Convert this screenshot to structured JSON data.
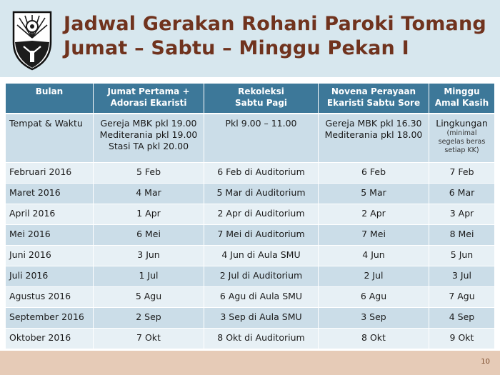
{
  "title": {
    "line1": "Jadwal Gerakan Rohani Paroki Tomang",
    "line2": "Jumat – Sabtu – Minggu Pekan I"
  },
  "colors": {
    "title": "#70331e",
    "header_bg": "#d7e7ee",
    "table_header": "#3d7899",
    "row_odd": "#cbdde8",
    "row_even": "#e7f0f5",
    "footer": "#e6cbb7"
  },
  "logo": {
    "icon": "parish-emblem-icon"
  },
  "table": {
    "headers": [
      [
        "Bulan"
      ],
      [
        "Jumat Pertama +",
        "Adorasi Ekaristi"
      ],
      [
        "Rekoleksi",
        "Sabtu Pagi"
      ],
      [
        "Novena Perayaan",
        "Ekaristi Sabtu Sore"
      ],
      [
        "Minggu",
        "Amal Kasih"
      ]
    ],
    "info_row": {
      "label": "Tempat & Waktu",
      "jumat": [
        "Gereja MBK pkl 19.00",
        "Mediterania pkl 19.00",
        "Stasi TA pkl 20.00"
      ],
      "rekoleksi": [
        "Pkl 9.00 – 11.00"
      ],
      "novena": [
        "Gereja MBK pkl 16.30",
        "Mediterania pkl 18.00"
      ],
      "minggu": "Lingkungan",
      "minggu_note": [
        "(minimal",
        "segelas beras",
        "setiap KK)"
      ]
    },
    "rows": [
      [
        "Februari 2016",
        "5 Feb",
        "6 Feb di Auditorium",
        "6 Feb",
        "7 Feb"
      ],
      [
        "Maret 2016",
        "4 Mar",
        "5 Mar di Auditorium",
        "5 Mar",
        "6 Mar"
      ],
      [
        "April 2016",
        "1 Apr",
        "2 Apr di Auditorium",
        "2 Apr",
        "3 Apr"
      ],
      [
        "Mei 2016",
        "6 Mei",
        "7 Mei di Auditorium",
        "7 Mei",
        "8 Mei"
      ],
      [
        "Juni 2016",
        "3 Jun",
        "4 Jun di Aula SMU",
        "4 Jun",
        "5 Jun"
      ],
      [
        "Juli 2016",
        "1 Jul",
        "2 Jul di Auditorium",
        "2 Jul",
        "3 Jul"
      ],
      [
        "Agustus 2016",
        "5 Agu",
        "6 Agu di Aula SMU",
        "6 Agu",
        "7 Agu"
      ],
      [
        "September 2016",
        "2 Sep",
        "3 Sep di Aula SMU",
        "3 Sep",
        "4 Sep"
      ],
      [
        "Oktober 2016",
        "7 Okt",
        "8 Okt di Auditorium",
        "8 Okt",
        "9 Okt"
      ]
    ]
  },
  "footer": {
    "page_number": "10"
  }
}
